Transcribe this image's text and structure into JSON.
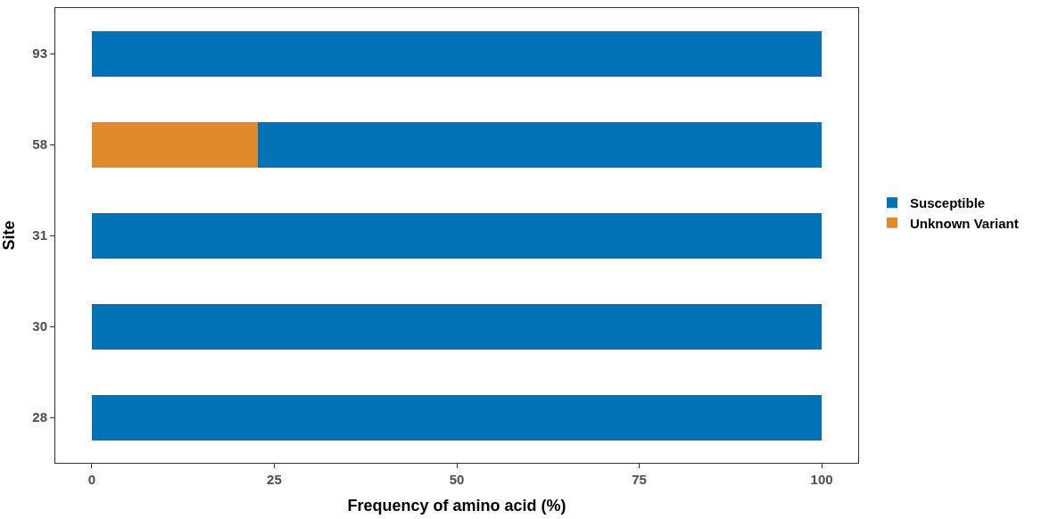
{
  "chart_data": {
    "type": "bar",
    "orientation": "horizontal",
    "stacked": true,
    "xlabel": "Frequency of amino acid (%)",
    "ylabel": "Site",
    "categories": [
      "93",
      "58",
      "31",
      "30",
      "28"
    ],
    "series": [
      {
        "name": "Unknown Variant",
        "color": "#e0892b",
        "values": [
          0,
          22.7,
          0,
          0,
          0
        ]
      },
      {
        "name": "Susceptible",
        "color": "#0072b5",
        "values": [
          100,
          77.3,
          100,
          100,
          100
        ]
      }
    ],
    "xlim": [
      -5,
      105
    ],
    "xticks": [
      0,
      25,
      50,
      75,
      100
    ],
    "legend": "right"
  }
}
